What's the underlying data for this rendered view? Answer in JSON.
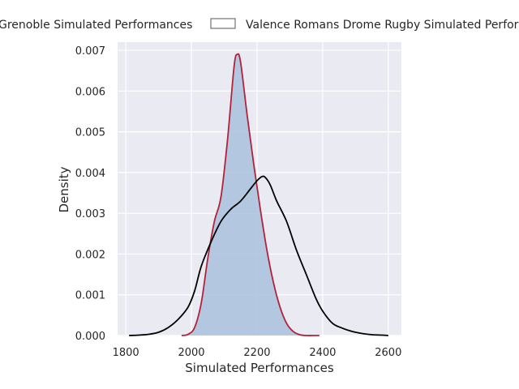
{
  "chart_data": {
    "type": "area",
    "title": "",
    "xlabel": "Simulated Performances",
    "ylabel": "Density",
    "xlim": [
      1775,
      2640
    ],
    "ylim": [
      0,
      0.0072
    ],
    "x_ticks": [
      1800,
      2000,
      2200,
      2400,
      2600
    ],
    "y_ticks": [
      0.0,
      0.001,
      0.002,
      0.003,
      0.004,
      0.005,
      0.006,
      0.007
    ],
    "x_tick_labels": [
      "1800",
      "2000",
      "2200",
      "2400",
      "2600"
    ],
    "y_tick_labels": [
      "0.000",
      "0.001",
      "0.002",
      "0.003",
      "0.004",
      "0.005",
      "0.006",
      "0.007"
    ],
    "grid": true,
    "legend_position": "top",
    "series": [
      {
        "name": "Grenoble Simulated Performances",
        "fill": true,
        "fill_color": "#a9c1de",
        "line_color": "#b2233a",
        "x": [
          1970,
          1990,
          2010,
          2030,
          2050,
          2070,
          2090,
          2110,
          2130,
          2140,
          2150,
          2170,
          2190,
          2210,
          2230,
          2250,
          2270,
          2290,
          2310,
          2330,
          2350,
          2370,
          2390
        ],
        "y": [
          0.0,
          3e-05,
          0.0002,
          0.0008,
          0.0019,
          0.0028,
          0.0034,
          0.0048,
          0.0066,
          0.0069,
          0.0067,
          0.0054,
          0.0042,
          0.0031,
          0.0021,
          0.0013,
          0.0007,
          0.0003,
          0.0001,
          2e-05,
          0.0,
          0.0,
          0.0
        ]
      },
      {
        "name": "Valence Romans Drome Rugby Simulated Performances",
        "fill": false,
        "fill_color": "none",
        "line_color": "#000000",
        "x": [
          1810,
          1840,
          1870,
          1900,
          1930,
          1960,
          1990,
          2010,
          2030,
          2060,
          2090,
          2120,
          2150,
          2180,
          2200,
          2215,
          2225,
          2240,
          2260,
          2290,
          2320,
          2350,
          2380,
          2400,
          2430,
          2460,
          2490,
          2520,
          2550,
          2580,
          2600
        ],
        "y": [
          0.0,
          1e-05,
          3e-05,
          8e-05,
          0.0002,
          0.0004,
          0.0007,
          0.0011,
          0.0017,
          0.0023,
          0.0028,
          0.0031,
          0.0033,
          0.0036,
          0.0038,
          0.0039,
          0.00388,
          0.0037,
          0.0033,
          0.0028,
          0.0021,
          0.0015,
          0.0009,
          0.0006,
          0.0003,
          0.00018,
          0.0001,
          5e-05,
          2e-05,
          1e-05,
          0.0
        ]
      }
    ]
  },
  "colors": {
    "plot_background": "#eaeaf2",
    "grid": "#ffffff",
    "legend_border": "#555555"
  }
}
